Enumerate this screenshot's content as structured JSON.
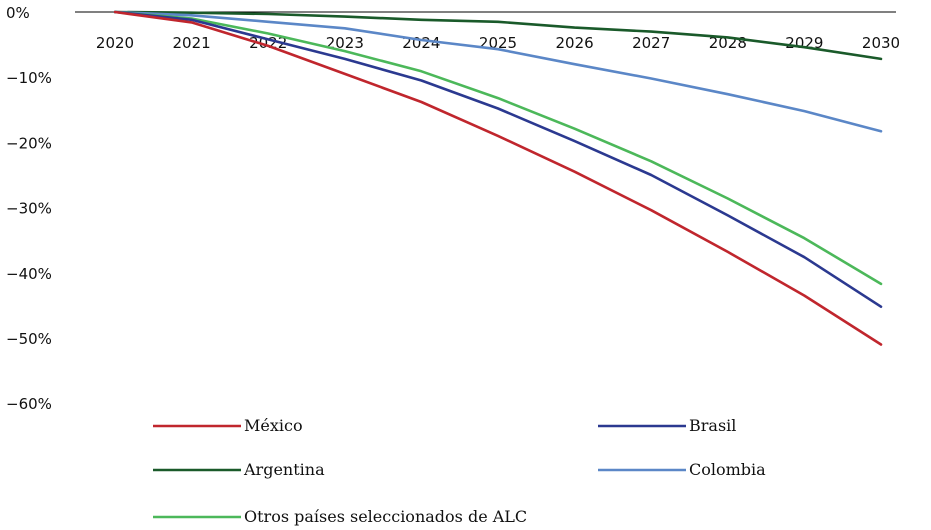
{
  "chart_data": {
    "type": "line",
    "title": "",
    "xlabel": "",
    "ylabel": "",
    "x": [
      "2020",
      "2021",
      "2022",
      "2023",
      "2024",
      "2025",
      "2026",
      "2027",
      "2028",
      "2029",
      "2030"
    ],
    "yticks": [
      "0%",
      "−10%",
      "−20%",
      "−30%",
      "−40%",
      "−50%",
      "−60%"
    ],
    "ytick_values": [
      0,
      -10,
      -20,
      -30,
      -40,
      -50,
      -60
    ],
    "ylim": [
      -60,
      0
    ],
    "grid": false,
    "legend_position": "bottom",
    "series": [
      {
        "name": "México",
        "color": "#c0262d",
        "values": [
          0,
          -1.6,
          -5.2,
          -9.5,
          -13.8,
          -19.0,
          -24.5,
          -30.4,
          -36.8,
          -43.5,
          -51.0
        ]
      },
      {
        "name": "Brasil",
        "color": "#2b3990",
        "values": [
          0,
          -1.2,
          -4.2,
          -7.2,
          -10.5,
          -14.8,
          -19.8,
          -25.0,
          -31.2,
          -37.6,
          -45.2
        ]
      },
      {
        "name": "Argentina",
        "color": "#1a5a2a",
        "values": [
          0,
          -0.1,
          -0.3,
          -0.7,
          -1.2,
          -1.5,
          -2.4,
          -3.0,
          -3.9,
          -5.4,
          -7.2
        ]
      },
      {
        "name": "Colombia",
        "color": "#5b87c7",
        "values": [
          0,
          -0.5,
          -1.5,
          -2.5,
          -4.3,
          -5.7,
          -8.0,
          -10.2,
          -12.6,
          -15.2,
          -18.3
        ]
      },
      {
        "name": "Otros países seleccionados de ALC",
        "color": "#4cb85a",
        "values": [
          0,
          -1.0,
          -3.3,
          -6.0,
          -9.1,
          -13.2,
          -17.9,
          -22.9,
          -28.6,
          -34.7,
          -41.7
        ]
      }
    ]
  }
}
